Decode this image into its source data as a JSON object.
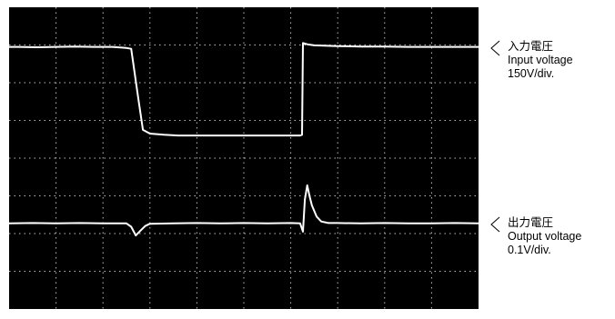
{
  "chart_data": {
    "type": "line",
    "title": "",
    "grid": true,
    "grid_divisions": {
      "x": 10,
      "y": 8
    },
    "background_color": "#000000",
    "trace_color": "#ffffff",
    "grid_color": "#bdbdbd",
    "ylim": [
      -4,
      4
    ],
    "xlim": [
      0,
      10
    ],
    "series": [
      {
        "name": "入力電圧",
        "volts_per_div": "150V/div.",
        "x": [
          0,
          0.2,
          0.6,
          1.0,
          1.4,
          1.8,
          2.2,
          2.5,
          2.6,
          2.75,
          2.85,
          3.0,
          3.3,
          3.6,
          4.0,
          4.5,
          5.0,
          5.5,
          6.0,
          6.2,
          6.24,
          6.26,
          6.35,
          6.5,
          7.0,
          7.5,
          8.0,
          8.5,
          9.0,
          9.5,
          10.0
        ],
        "y": [
          2.95,
          2.95,
          2.94,
          2.95,
          2.96,
          2.95,
          2.95,
          2.92,
          2.9,
          1.6,
          0.75,
          0.65,
          0.62,
          0.6,
          0.6,
          0.6,
          0.6,
          0.6,
          0.6,
          0.6,
          0.62,
          3.05,
          3.02,
          2.99,
          2.97,
          2.96,
          2.96,
          2.95,
          2.95,
          2.95,
          2.95
        ]
      },
      {
        "name": "出力電圧",
        "volts_per_div": "0.1V/div.",
        "x": [
          0,
          0.5,
          1.0,
          1.5,
          2.0,
          2.5,
          2.6,
          2.7,
          2.8,
          2.9,
          3.0,
          3.5,
          4.0,
          4.5,
          5.0,
          5.5,
          6.0,
          6.2,
          6.26,
          6.3,
          6.35,
          6.4,
          6.45,
          6.55,
          6.65,
          6.8,
          7.0,
          7.5,
          8.0,
          8.5,
          9.0,
          9.5,
          10.0
        ],
        "y": [
          -1.73,
          -1.72,
          -1.73,
          -1.72,
          -1.73,
          -1.73,
          -1.82,
          -2.05,
          -1.92,
          -1.8,
          -1.74,
          -1.73,
          -1.72,
          -1.73,
          -1.72,
          -1.73,
          -1.72,
          -1.73,
          -1.95,
          -1.1,
          -0.72,
          -1.0,
          -1.25,
          -1.55,
          -1.68,
          -1.72,
          -1.72,
          -1.73,
          -1.72,
          -1.73,
          -1.73,
          -1.72,
          -1.73
        ]
      }
    ],
    "annotations": [
      {
        "channel": 0,
        "lines": [
          "入力電圧",
          "Input voltage",
          "150V/div."
        ]
      },
      {
        "channel": 1,
        "lines": [
          "出力電圧",
          "Output voltage",
          "0.1V/div."
        ]
      }
    ]
  }
}
